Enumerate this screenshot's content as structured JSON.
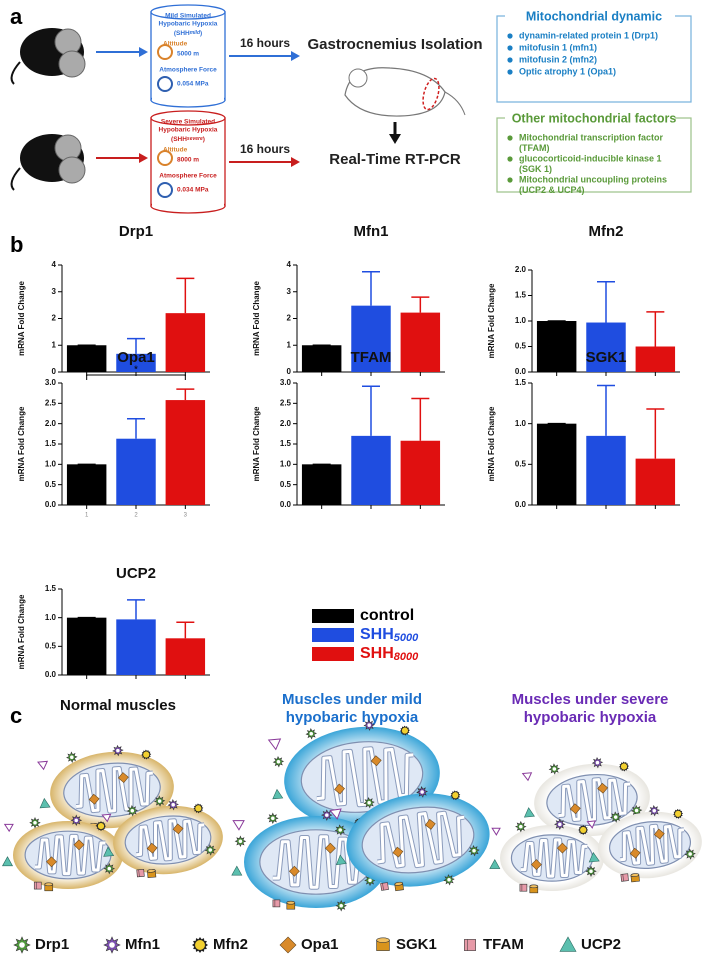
{
  "panel_a": {
    "label": "a",
    "arms": [
      {
        "title": [
          "Mild Simulated",
          "Hypobaric Hypoxia"
        ],
        "abbr_open": "(SHH",
        "sub": "mild",
        "abbr_close": ")",
        "altitude_label": "Altitude",
        "altitude": "5000 m",
        "force_label": "Atmosphere Force",
        "force": "0.054 MPa",
        "duration": "16 hours",
        "color": "#2f6fd6"
      },
      {
        "title": [
          "Severe Simulated",
          "Hypobaric Hypoxia"
        ],
        "abbr_open": "(SHH",
        "sub": "severe",
        "abbr_close": ")",
        "altitude_label": "Altitude",
        "altitude": "8000 m",
        "force_label": "Atmosphere Force",
        "force": "0.034 MPa",
        "duration": "16 hours",
        "color": "#c81e1e"
      }
    ],
    "isolation": "Gastrocnemius Isolation",
    "assay": "Real-Time RT-PCR",
    "boxes": [
      {
        "title": "Mitochondrial dynamic",
        "color": "#1a7fc4",
        "items": [
          [
            "dynamin-related protein 1 (Drp1)"
          ],
          [
            "mitofusin 1 (mfn1)"
          ],
          [
            "mitofusin 2 (mfn2)"
          ],
          [
            "Optic atrophy 1 (Opa1)"
          ]
        ]
      },
      {
        "title": "Other mitochondrial factors",
        "color": "#5a9a3a",
        "items": [
          [
            "Mitochondrial transcription factor",
            "(TFAM)"
          ],
          [
            "glucocorticoid-inducible kinase 1",
            "(SGK 1)"
          ],
          [
            "Mitochondrial uncoupling proteins",
            "(UCP2 & UCP4)"
          ]
        ]
      }
    ]
  },
  "panel_b": {
    "label": "b",
    "legend": [
      {
        "name": "control",
        "color": "#000000"
      },
      {
        "name": "SHH",
        "sub": "5000",
        "color": "#1f4de0"
      },
      {
        "name": "SHH",
        "sub": "8000",
        "color": "#e01010"
      }
    ]
  },
  "chart_data": [
    {
      "type": "bar",
      "title": "Drp1",
      "ylabel": "mRNA Fold Change",
      "categories": [
        null,
        null,
        null
      ],
      "values": [
        1,
        0.68,
        2.2
      ],
      "errors": [
        0,
        0.57,
        1.3
      ],
      "ylim": [
        0,
        4
      ],
      "yticks": [
        0,
        1,
        2,
        3,
        4
      ]
    },
    {
      "type": "bar",
      "title": "Mfn1",
      "ylabel": "mRNA Fold Change",
      "categories": [
        null,
        null,
        null
      ],
      "values": [
        1,
        2.48,
        2.22
      ],
      "errors": [
        0,
        1.27,
        0.58
      ],
      "ylim": [
        0,
        4
      ],
      "yticks": [
        0,
        1,
        2,
        3,
        4
      ]
    },
    {
      "type": "bar",
      "title": "Mfn2",
      "ylabel": "mRNA Fold Change",
      "categories": [
        null,
        null,
        null
      ],
      "values": [
        1,
        0.97,
        0.5
      ],
      "errors": [
        0,
        0.8,
        0.68
      ],
      "ylim": [
        0,
        2
      ],
      "yticks": [
        {
          "value": 0,
          "label": "0.0"
        },
        0.5,
        {
          "value": 1,
          "label": "1.0"
        },
        1.5,
        {
          "value": 2,
          "label": "2.0"
        }
      ]
    },
    {
      "type": "bar",
      "title": "Opa1",
      "ylabel": "mRNA Fold Change",
      "categories": [
        "1",
        "2",
        "3"
      ],
      "values": [
        1,
        1.63,
        2.58
      ],
      "errors": [
        0,
        0.49,
        0.27
      ],
      "ylim": [
        0,
        3
      ],
      "yticks": [
        {
          "value": 0,
          "label": "0.0"
        },
        0.5,
        {
          "value": 1,
          "label": "1.0"
        },
        1.5,
        {
          "value": 2,
          "label": "2.0"
        },
        2.5,
        {
          "value": 3,
          "label": "3.0"
        }
      ],
      "significance": {
        "from": 0,
        "to": 2,
        "label": "*"
      }
    },
    {
      "type": "bar",
      "title": "TFAM",
      "ylabel": "mRNA Fold Change",
      "categories": [
        null,
        null,
        null
      ],
      "values": [
        1,
        1.7,
        1.58
      ],
      "errors": [
        0,
        1.22,
        1.04
      ],
      "ylim": [
        0,
        3
      ],
      "yticks": [
        {
          "value": 0,
          "label": "0.0"
        },
        0.5,
        {
          "value": 1,
          "label": "1.0"
        },
        1.5,
        {
          "value": 2,
          "label": "2.0"
        },
        2.5,
        {
          "value": 3,
          "label": "3.0"
        }
      ]
    },
    {
      "type": "bar",
      "title": "SGK1",
      "ylabel": "mRNA Fold Change",
      "categories": [
        null,
        null,
        null
      ],
      "values": [
        1,
        0.85,
        0.57
      ],
      "errors": [
        0,
        0.62,
        0.61
      ],
      "ylim": [
        0,
        1.5
      ],
      "yticks": [
        {
          "value": 0,
          "label": "0.0"
        },
        0.5,
        {
          "value": 1,
          "label": "1.0"
        },
        1.5
      ]
    },
    {
      "type": "bar",
      "title": "UCP2",
      "ylabel": "mRNA Fold Change",
      "categories": [
        null,
        null,
        null
      ],
      "values": [
        1,
        0.97,
        0.64
      ],
      "errors": [
        0,
        0.34,
        0.28
      ],
      "ylim": [
        0,
        1.5
      ],
      "yticks": [
        {
          "value": 0,
          "label": "0.0"
        },
        0.5,
        {
          "value": 1,
          "label": "1.0"
        },
        1.5
      ]
    }
  ],
  "panel_c": {
    "label": "c",
    "groups": [
      {
        "title": [
          "Normal muscles"
        ],
        "color": "#111111"
      },
      {
        "title": [
          "Muscles under mild",
          "hypobaric hypoxia"
        ],
        "color": "#1a6fcc"
      },
      {
        "title": [
          "Muscles under severe",
          "hypobaric hypoxia"
        ],
        "color": "#6a2bb5"
      }
    ],
    "legend": [
      {
        "name": "Drp1",
        "shape": "star",
        "color": "#4f9a3c"
      },
      {
        "name": "Mfn1",
        "shape": "star",
        "color": "#7b4fb0"
      },
      {
        "name": "Mfn2",
        "shape": "sun",
        "color": "#f2d030"
      },
      {
        "name": "Opa1",
        "shape": "diamond",
        "color": "#d98a2a"
      },
      {
        "name": "SGK1",
        "shape": "cylinder",
        "color": "#d9941c"
      },
      {
        "name": "TFAM",
        "shape": "cube",
        "color": "#e79aa8"
      },
      {
        "name": "UCP2",
        "shape": "triangle",
        "color": "#5bbfae"
      }
    ]
  }
}
